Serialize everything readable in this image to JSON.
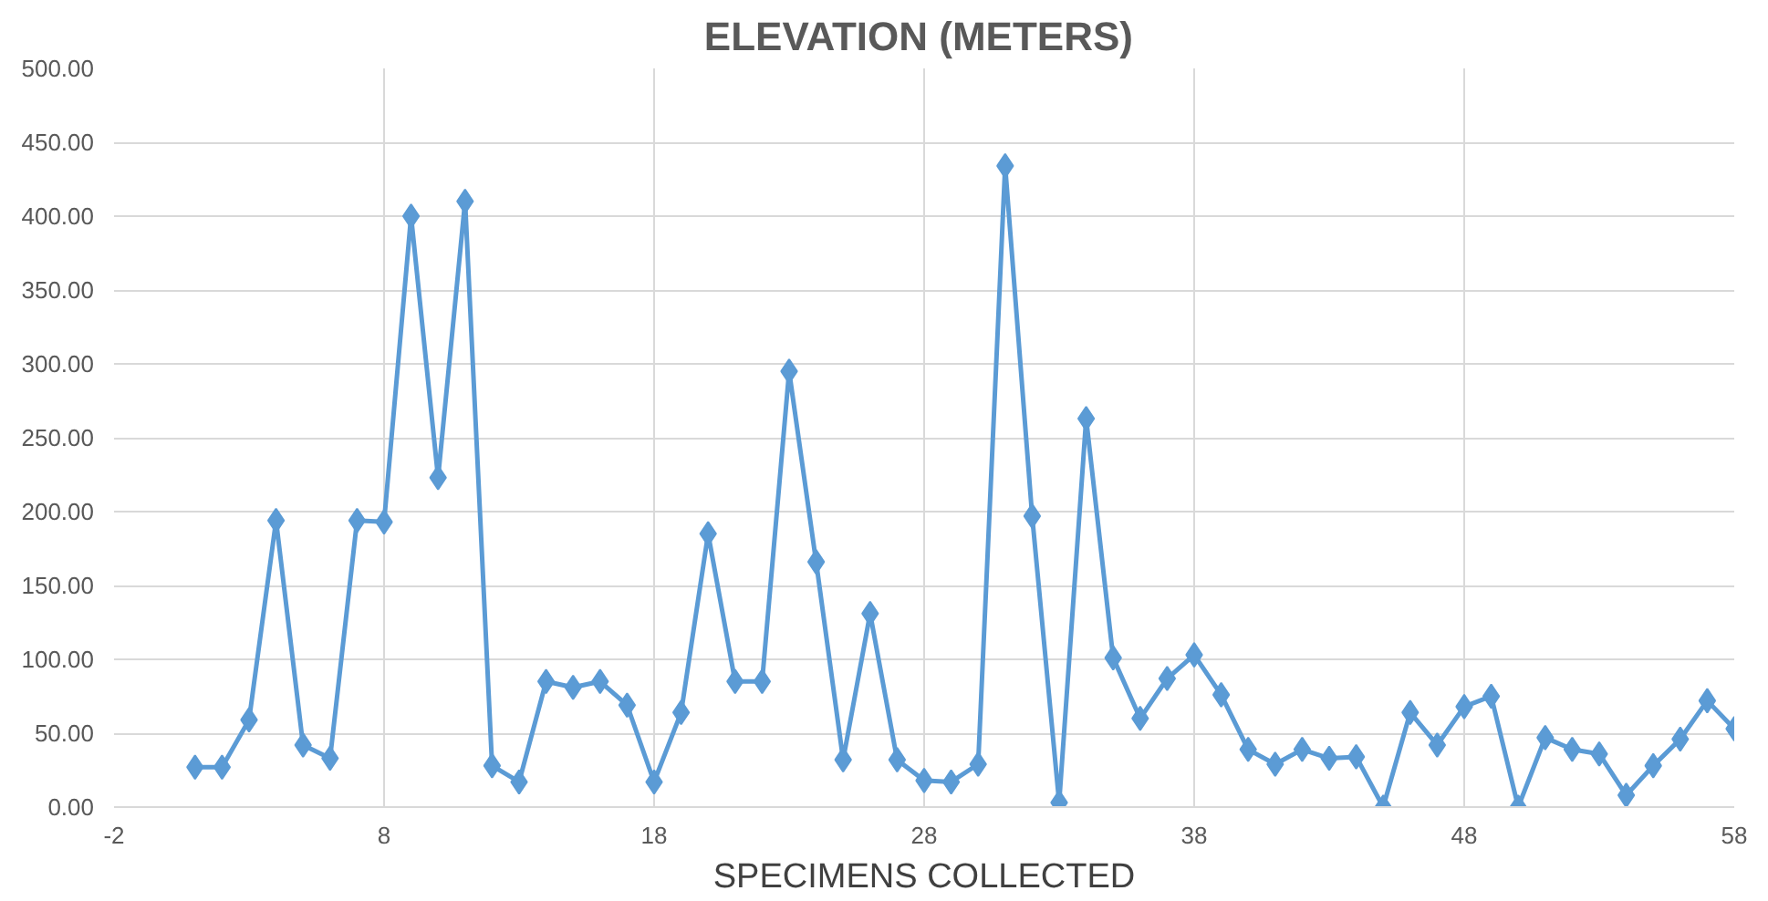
{
  "chart_data": {
    "type": "line",
    "title": "ELEVATION  (METERS)",
    "xlabel": "SPECIMENS COLLECTED",
    "x": [
      1,
      2,
      3,
      4,
      5,
      6,
      7,
      8,
      9,
      10,
      11,
      12,
      13,
      14,
      15,
      16,
      17,
      18,
      19,
      20,
      21,
      22,
      23,
      24,
      25,
      26,
      27,
      28,
      29,
      30,
      31,
      32,
      33,
      34,
      35,
      36,
      37,
      38,
      39,
      40,
      41,
      42,
      43,
      44,
      45,
      46,
      47,
      48,
      49,
      50,
      51,
      52,
      53,
      54,
      55,
      56,
      57,
      58
    ],
    "series": [
      {
        "color": "#5b9bd5",
        "values": [
          27,
          27,
          59,
          194,
          42,
          33,
          194,
          193,
          400,
          223,
          410,
          28,
          17,
          85,
          81,
          85,
          69,
          17,
          64,
          185,
          85,
          85,
          295,
          166,
          32,
          131,
          32,
          18,
          17,
          29,
          434,
          197,
          3,
          263,
          101,
          60,
          87,
          103,
          76,
          39,
          29,
          39,
          33,
          34,
          0,
          64,
          42,
          68,
          75,
          0,
          47,
          39,
          36,
          8,
          28,
          46,
          72,
          53
        ]
      }
    ],
    "xlim": [
      -2,
      58
    ],
    "xticks": [
      -2,
      8,
      18,
      28,
      38,
      48,
      58
    ],
    "ylim": [
      0,
      500
    ],
    "yticks": [
      {
        "value": 0,
        "label": "0.00"
      },
      {
        "value": 50,
        "label": "50.00"
      },
      {
        "value": 100,
        "label": "100.00"
      },
      {
        "value": 150,
        "label": "150.00"
      },
      {
        "value": 200,
        "label": "200.00"
      },
      {
        "value": 250,
        "label": "250.00"
      },
      {
        "value": 300,
        "label": "300.00"
      },
      {
        "value": 350,
        "label": "350.00"
      },
      {
        "value": 400,
        "label": "400.00"
      },
      {
        "value": 450,
        "label": "450.00"
      },
      {
        "value": 500,
        "label": "500.00"
      }
    ],
    "grid": true,
    "marker": "diamond",
    "line_style": "solid"
  }
}
